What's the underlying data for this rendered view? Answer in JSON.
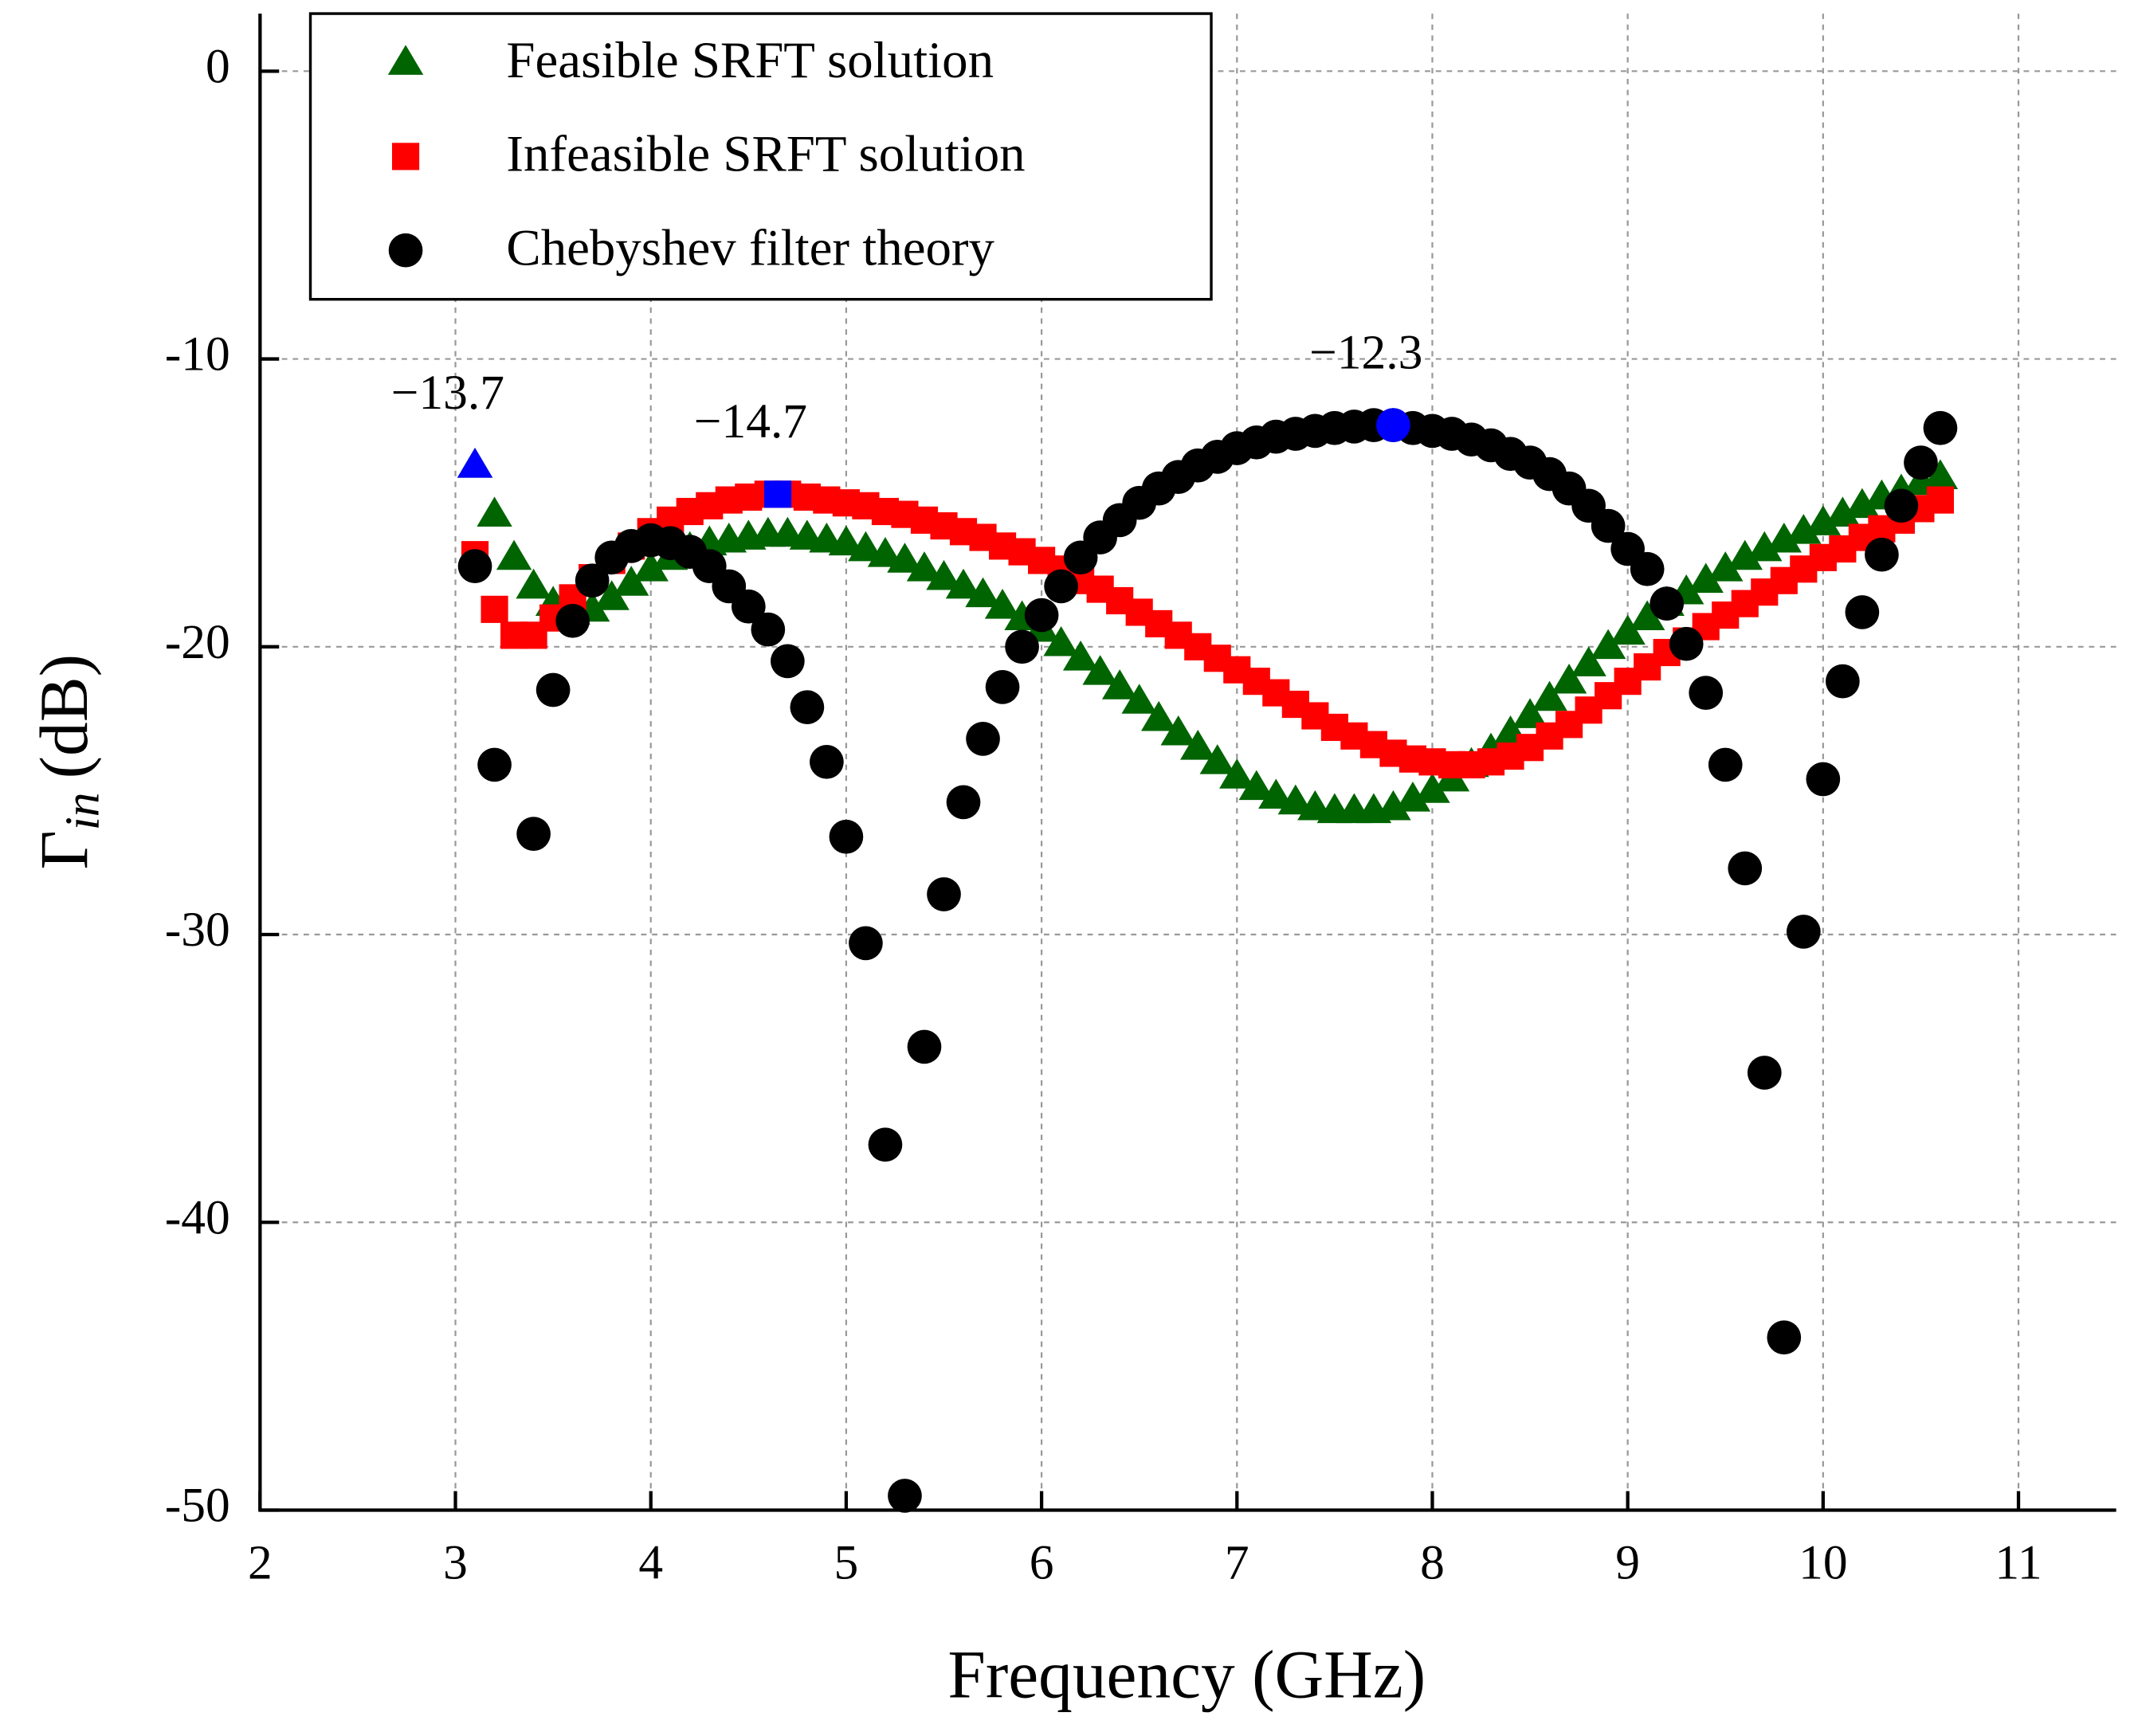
{
  "chart_data": {
    "type": "scatter",
    "xlabel": "Frequency (GHz)",
    "ylabel": {
      "symbol": "Γ",
      "subscript": "in",
      "unit": "(dB)"
    },
    "xlim": [
      2,
      11.5
    ],
    "ylim": [
      -50,
      2
    ],
    "xticks": [
      2,
      3,
      4,
      5,
      6,
      7,
      8,
      9,
      10,
      11
    ],
    "yticks": [
      0,
      -10,
      -20,
      -30,
      -40,
      -50
    ],
    "grid": true,
    "legend": "upper left",
    "series": [
      {
        "name": "Feasible SRFT solution",
        "color": "#006400",
        "marker": "triangle",
        "x": [
          3.1,
          3.2,
          3.3,
          3.4,
          3.5,
          3.6,
          3.7,
          3.8,
          3.9,
          4.0,
          4.1,
          4.2,
          4.3,
          4.4,
          4.5,
          4.6,
          4.7,
          4.8,
          4.9,
          5.0,
          5.1,
          5.2,
          5.3,
          5.4,
          5.5,
          5.6,
          5.7,
          5.8,
          5.9,
          6.0,
          6.1,
          6.2,
          6.3,
          6.4,
          6.5,
          6.6,
          6.7,
          6.8,
          6.9,
          7.0,
          7.1,
          7.2,
          7.3,
          7.4,
          7.5,
          7.6,
          7.7,
          7.8,
          7.9,
          8.0,
          8.1,
          8.2,
          8.3,
          8.4,
          8.5,
          8.6,
          8.7,
          8.8,
          8.9,
          9.0,
          9.1,
          9.2,
          9.3,
          9.4,
          9.5,
          9.6,
          9.7,
          9.8,
          9.9,
          10.0,
          10.1,
          10.2,
          10.3,
          10.4,
          10.5,
          10.6
        ],
        "values": [
          -13.7,
          -15.4,
          -16.9,
          -17.9,
          -18.5,
          -18.8,
          -18.7,
          -18.3,
          -17.8,
          -17.3,
          -16.9,
          -16.6,
          -16.4,
          -16.3,
          -16.2,
          -16.1,
          -16.1,
          -16.2,
          -16.3,
          -16.4,
          -16.6,
          -16.8,
          -17.0,
          -17.3,
          -17.6,
          -17.9,
          -18.2,
          -18.6,
          -19.0,
          -19.4,
          -19.9,
          -20.4,
          -20.9,
          -21.4,
          -21.9,
          -22.5,
          -23.0,
          -23.5,
          -24.0,
          -24.5,
          -24.9,
          -25.2,
          -25.4,
          -25.6,
          -25.7,
          -25.7,
          -25.7,
          -25.6,
          -25.3,
          -25.0,
          -24.6,
          -24.1,
          -23.6,
          -23.0,
          -22.4,
          -21.8,
          -21.2,
          -20.6,
          -20.0,
          -19.5,
          -19.0,
          -18.5,
          -18.1,
          -17.7,
          -17.3,
          -16.9,
          -16.6,
          -16.3,
          -16.0,
          -15.7,
          -15.4,
          -15.1,
          -14.8,
          -14.6,
          -14.3,
          -14.1
        ]
      },
      {
        "name": "Infeasible SRFT solution",
        "color": "#ff0000",
        "marker": "square",
        "x": [
          3.1,
          3.2,
          3.3,
          3.4,
          3.5,
          3.6,
          3.7,
          3.8,
          3.9,
          4.0,
          4.1,
          4.2,
          4.3,
          4.4,
          4.5,
          4.6,
          4.7,
          4.8,
          4.9,
          5.0,
          5.1,
          5.2,
          5.3,
          5.4,
          5.5,
          5.6,
          5.7,
          5.8,
          5.9,
          6.0,
          6.1,
          6.2,
          6.3,
          6.4,
          6.5,
          6.6,
          6.7,
          6.8,
          6.9,
          7.0,
          7.1,
          7.2,
          7.3,
          7.4,
          7.5,
          7.6,
          7.7,
          7.8,
          7.9,
          8.0,
          8.1,
          8.2,
          8.3,
          8.4,
          8.5,
          8.6,
          8.7,
          8.8,
          8.9,
          9.0,
          9.1,
          9.2,
          9.3,
          9.4,
          9.5,
          9.6,
          9.7,
          9.8,
          9.9,
          10.0,
          10.1,
          10.2,
          10.3,
          10.4,
          10.5,
          10.6
        ],
        "values": [
          -16.8,
          -18.7,
          -19.6,
          -19.6,
          -19.0,
          -18.3,
          -17.6,
          -17.0,
          -16.5,
          -16.0,
          -15.6,
          -15.3,
          -15.1,
          -14.9,
          -14.8,
          -14.7,
          -14.7,
          -14.8,
          -14.9,
          -15.0,
          -15.1,
          -15.3,
          -15.4,
          -15.6,
          -15.8,
          -16.0,
          -16.2,
          -16.5,
          -16.7,
          -17.0,
          -17.3,
          -17.7,
          -18.0,
          -18.4,
          -18.8,
          -19.2,
          -19.6,
          -20.0,
          -20.4,
          -20.8,
          -21.2,
          -21.6,
          -22.0,
          -22.4,
          -22.8,
          -23.1,
          -23.4,
          -23.7,
          -23.9,
          -24.0,
          -24.1,
          -24.1,
          -24.0,
          -23.8,
          -23.5,
          -23.1,
          -22.7,
          -22.2,
          -21.7,
          -21.2,
          -20.7,
          -20.2,
          -19.8,
          -19.3,
          -18.9,
          -18.5,
          -18.1,
          -17.7,
          -17.3,
          -16.9,
          -16.6,
          -16.2,
          -15.9,
          -15.6,
          -15.2,
          -14.9
        ]
      },
      {
        "name": "Chebyshev filter theory",
        "color": "#000000",
        "marker": "circle",
        "x": [
          3.1,
          3.2,
          3.4,
          3.5,
          3.6,
          3.7,
          3.8,
          3.9,
          4.0,
          4.1,
          4.2,
          4.3,
          4.4,
          4.5,
          4.6,
          4.7,
          4.8,
          4.9,
          5.0,
          5.1,
          5.2,
          5.3,
          5.4,
          5.5,
          5.6,
          5.7,
          5.8,
          5.9,
          6.0,
          6.1,
          6.2,
          6.3,
          6.4,
          6.5,
          6.6,
          6.7,
          6.8,
          6.9,
          7.0,
          7.1,
          7.2,
          7.3,
          7.4,
          7.5,
          7.6,
          7.7,
          7.8,
          7.9,
          8.0,
          8.1,
          8.2,
          8.3,
          8.4,
          8.5,
          8.6,
          8.7,
          8.8,
          8.9,
          9.0,
          9.1,
          9.2,
          9.3,
          9.4,
          9.5,
          9.6,
          9.7,
          9.8,
          9.9,
          10.0,
          10.1,
          10.2,
          10.3,
          10.4,
          10.5,
          10.6
        ],
        "values": [
          -17.2,
          -24.1,
          -26.5,
          -21.5,
          -19.1,
          -17.7,
          -16.9,
          -16.5,
          -16.3,
          -16.4,
          -16.7,
          -17.2,
          -17.9,
          -18.6,
          -19.4,
          -20.5,
          -22.1,
          -24.0,
          -26.6,
          -30.3,
          -37.3,
          -49.5,
          -33.9,
          -28.6,
          -25.4,
          -23.2,
          -21.4,
          -20.0,
          -18.9,
          -17.9,
          -16.9,
          -16.2,
          -15.6,
          -15.0,
          -14.5,
          -14.1,
          -13.7,
          -13.4,
          -13.1,
          -12.9,
          -12.7,
          -12.6,
          -12.5,
          -12.4,
          -12.35,
          -12.3,
          -12.3,
          -12.4,
          -12.5,
          -12.6,
          -12.8,
          -13.0,
          -13.3,
          -13.6,
          -14.0,
          -14.5,
          -15.1,
          -15.8,
          -16.6,
          -17.3,
          -18.5,
          -19.9,
          -21.6,
          -24.1,
          -27.7,
          -34.8,
          -44.0,
          -29.9,
          -24.6,
          -21.2,
          -18.8,
          -16.8,
          -15.1,
          -13.6,
          -12.4
        ]
      }
    ],
    "annotations": [
      {
        "text": "−13.7",
        "x": 3.1,
        "y": -13.7,
        "marker": "triangle",
        "color": "#0000ff"
      },
      {
        "text": "−14.7",
        "x": 4.65,
        "y": -14.7,
        "marker": "square",
        "color": "#0000ff"
      },
      {
        "text": "−12.3",
        "x": 7.8,
        "y": -12.3,
        "marker": "circle",
        "color": "#0000ff"
      }
    ]
  }
}
